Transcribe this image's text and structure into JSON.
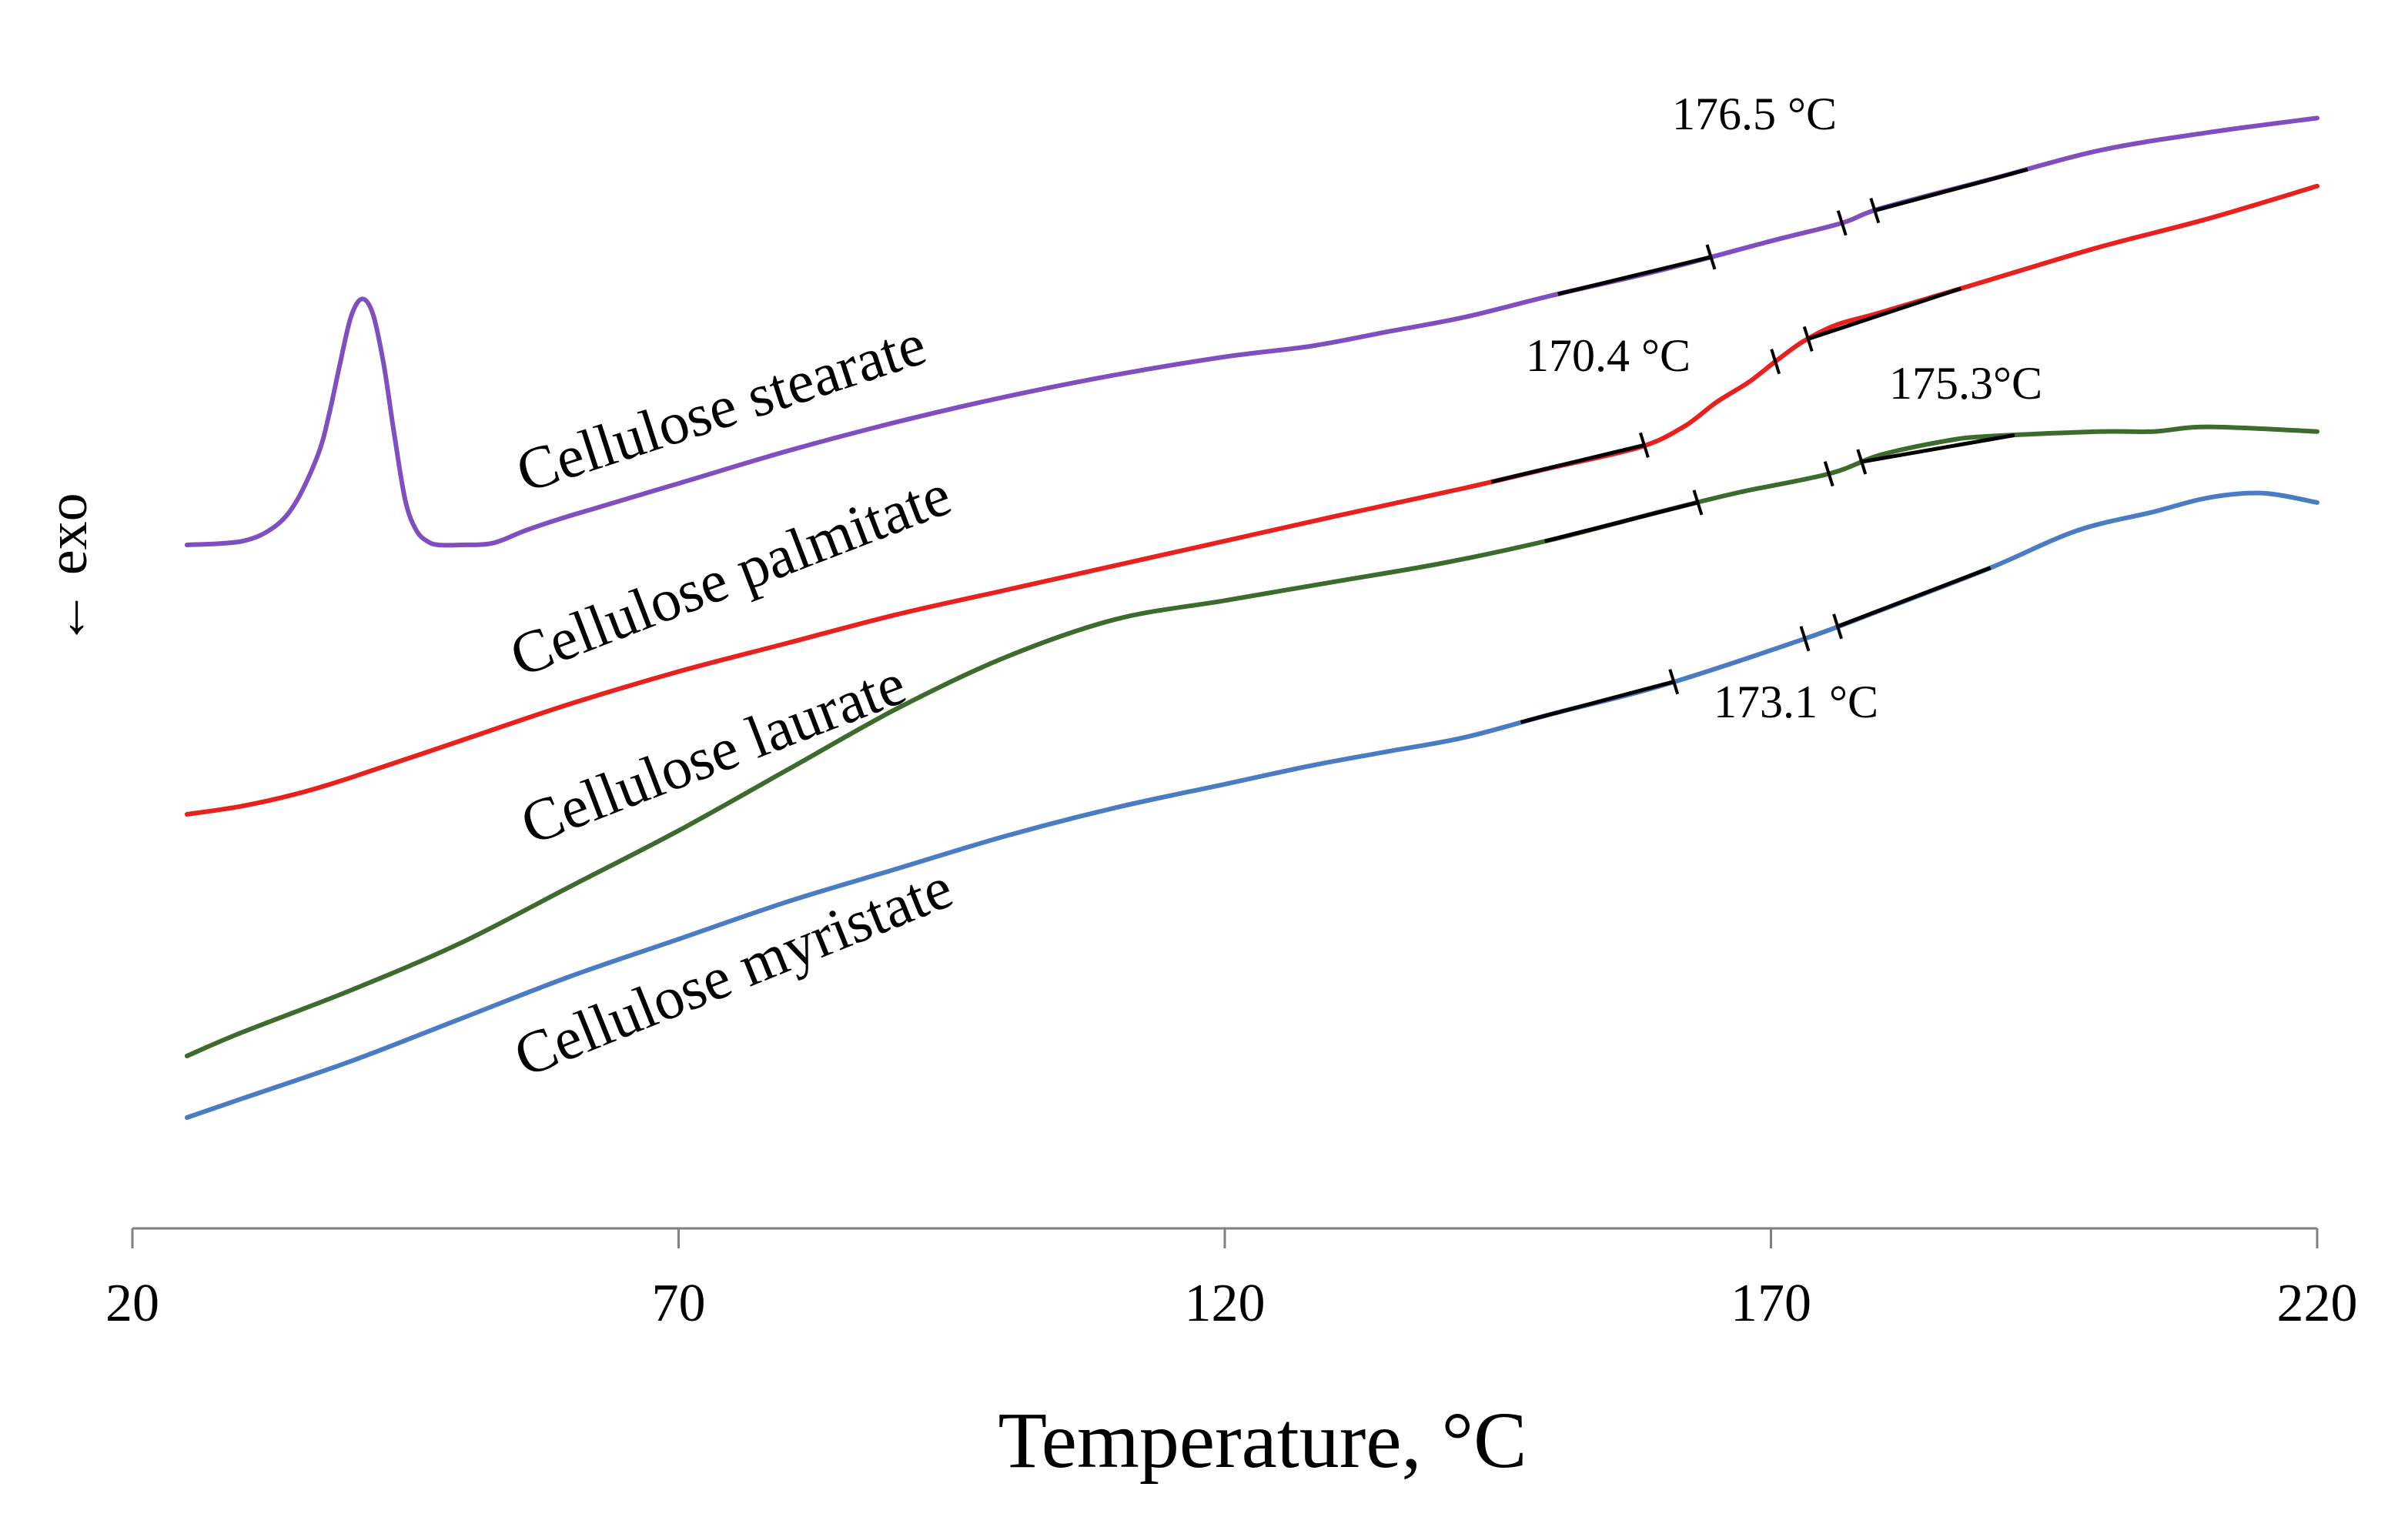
{
  "chart_data": {
    "type": "line",
    "title": "",
    "xlabel": "Temperature, °C",
    "ylabel": "← exo",
    "xlim": [
      20,
      220
    ],
    "xticks": [
      20,
      70,
      120,
      170,
      220
    ],
    "xtick_labels": [
      "20",
      "70",
      "120",
      "170",
      "220"
    ],
    "y_ticks_shown": false,
    "grid": false,
    "series": [
      {
        "name": "Cellulose stearate",
        "color": "#7f4fbf",
        "x": [
          25,
          30,
          33,
          35,
          37,
          38,
          39,
          40,
          41,
          42,
          43,
          44,
          45,
          46,
          47,
          48,
          50,
          53,
          56,
          60,
          70,
          80,
          90,
          100,
          110,
          120,
          128,
          135,
          142,
          150,
          160,
          170,
          176.5,
          180,
          190,
          200,
          210,
          220
        ],
        "y": [
          0.0,
          0.1,
          0.5,
          1.2,
          2.5,
          3.6,
          5.0,
          6.3,
          6.8,
          6.4,
          5.0,
          3.0,
          1.2,
          0.4,
          0.1,
          0.0,
          0.0,
          0.05,
          0.4,
          0.8,
          1.7,
          2.6,
          3.4,
          4.1,
          4.7,
          5.2,
          5.5,
          5.9,
          6.3,
          6.9,
          7.6,
          8.4,
          8.9,
          9.3,
          10.1,
          10.9,
          11.4,
          11.8
        ]
      },
      {
        "name": "Cellulose palmitate",
        "color": "#e8201e",
        "x": [
          25,
          30,
          35,
          40,
          50,
          60,
          70,
          80,
          90,
          100,
          110,
          120,
          130,
          142,
          150,
          158,
          162,
          165,
          168,
          170.4,
          173,
          176,
          180,
          190,
          200,
          210,
          220
        ],
        "y": [
          0.0,
          0.2,
          0.5,
          0.9,
          1.8,
          2.7,
          3.5,
          4.2,
          4.9,
          5.5,
          6.1,
          6.7,
          7.3,
          8.0,
          8.5,
          9.0,
          9.5,
          10.1,
          10.6,
          11.1,
          11.6,
          12.0,
          12.3,
          13.1,
          13.9,
          14.6,
          15.4
        ]
      },
      {
        "name": "Cellulose laurate",
        "color": "#3d6b2e",
        "x": [
          25,
          30,
          40,
          50,
          60,
          70,
          80,
          90,
          100,
          110,
          120,
          130,
          140,
          150,
          160,
          167,
          175.3,
          180,
          186,
          190,
          200,
          205,
          210,
          220
        ],
        "y": [
          0.0,
          0.5,
          1.4,
          2.4,
          3.6,
          4.8,
          6.1,
          7.4,
          8.5,
          9.3,
          9.7,
          10.1,
          10.5,
          11.0,
          11.6,
          12.0,
          12.4,
          12.8,
          13.1,
          13.2,
          13.3,
          13.3,
          13.4,
          13.3
        ]
      },
      {
        "name": "Cellulose myristate",
        "color": "#4a7cc4",
        "x": [
          25,
          30,
          40,
          50,
          60,
          70,
          80,
          90,
          100,
          110,
          120,
          128,
          135,
          142,
          150,
          160,
          173.1,
          180,
          190,
          198,
          205,
          210,
          215,
          220
        ],
        "y": [
          0.0,
          0.4,
          1.2,
          2.1,
          3.0,
          3.8,
          4.6,
          5.3,
          6.0,
          6.6,
          7.1,
          7.5,
          7.8,
          8.1,
          8.6,
          9.2,
          10.2,
          10.8,
          11.7,
          12.5,
          12.9,
          13.2,
          13.3,
          13.1
        ]
      }
    ],
    "annotations": [
      {
        "text": "176.5 °C",
        "series": "Cellulose stearate",
        "tg": 176.5
      },
      {
        "text": "170.4 °C",
        "series": "Cellulose palmitate",
        "tg": 170.4
      },
      {
        "text": "175.3°C",
        "series": "Cellulose laurate",
        "tg": 175.3
      },
      {
        "text": "173.1 °C",
        "series": "Cellulose myristate",
        "tg": 173.1
      }
    ]
  }
}
